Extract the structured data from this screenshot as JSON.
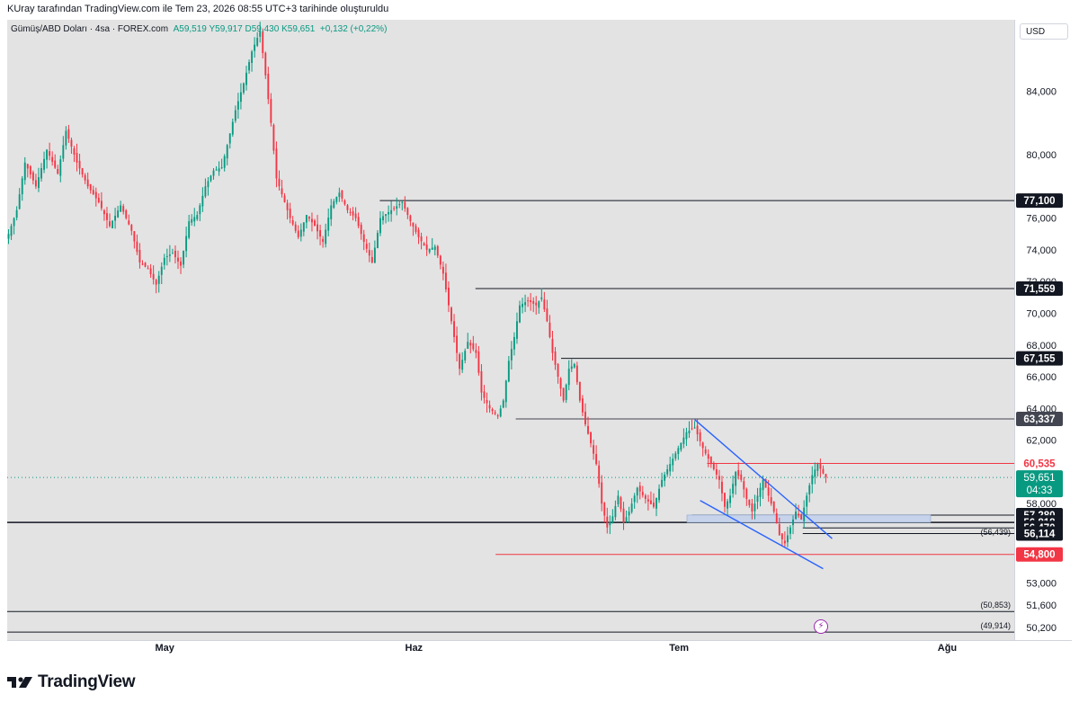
{
  "header": {
    "caption": "KUray tarafından TradingView.com ile Tem 23, 2026 08:55 UTC+3 tarihinde oluşturuldu"
  },
  "symbol": {
    "name": "Gümüş/ABD Doları · 4sa · FOREX.com",
    "ohlc": "A59,519  Y59,917  D59,430  K59,651",
    "change": "+0,132 (+0,22%)"
  },
  "currency": "USD",
  "logo_text": "TradingView",
  "colors": {
    "up": "#089981",
    "down": "#f23645",
    "trendline": "#2962ff",
    "level": "#131722",
    "red_level": "#f23645"
  },
  "chart_data": {
    "type": "candlestick",
    "title": "Gümüş/ABD Doları",
    "timeframe": "4sa",
    "x_tick_labels": [
      "May",
      "Haz",
      "Tem",
      "Ağu"
    ],
    "y_tick_labels": [
      "84,000",
      "80,000",
      "76,000",
      "74,000",
      "72,000",
      "70,000",
      "68,000",
      "66,000",
      "64,000",
      "62,000",
      "58,000",
      "53,000",
      "51,600",
      "50,200"
    ],
    "y_ticks": [
      84,
      80,
      76,
      74,
      72,
      70,
      68,
      66,
      64,
      62,
      58,
      53,
      51.6,
      50.2
    ],
    "ylim": [
      49.4,
      88.5
    ],
    "current_price": 59.651,
    "current_price_label": "59,651",
    "countdown": "04:33",
    "price_path": [
      [
        0,
        75.0
      ],
      [
        3,
        76.5
      ],
      [
        6,
        79.5
      ],
      [
        10,
        78.0
      ],
      [
        14,
        80.3
      ],
      [
        18,
        78.8
      ],
      [
        21,
        81.5
      ],
      [
        25,
        79.5
      ],
      [
        29,
        78.0
      ],
      [
        33,
        77.0
      ],
      [
        37,
        75.5
      ],
      [
        41,
        76.8
      ],
      [
        45,
        75.2
      ],
      [
        48,
        73.2
      ],
      [
        51,
        72.8
      ],
      [
        54,
        71.8
      ],
      [
        57,
        73.5
      ],
      [
        60,
        73.8
      ],
      [
        63,
        73.0
      ],
      [
        66,
        75.8
      ],
      [
        69,
        76.2
      ],
      [
        72,
        78.0
      ],
      [
        75,
        79.0
      ],
      [
        78,
        79.2
      ],
      [
        80,
        80.6
      ],
      [
        83,
        82.8
      ],
      [
        86,
        84.5
      ],
      [
        89,
        86.5
      ],
      [
        92,
        87.8
      ],
      [
        94,
        85.0
      ],
      [
        96,
        82.0
      ],
      [
        98,
        78.5
      ],
      [
        100,
        77.5
      ],
      [
        103,
        76.0
      ],
      [
        106,
        74.8
      ],
      [
        109,
        76.2
      ],
      [
        112,
        75.5
      ],
      [
        115,
        74.5
      ],
      [
        118,
        76.8
      ],
      [
        121,
        77.6
      ],
      [
        124,
        76.5
      ],
      [
        127,
        76.0
      ],
      [
        130,
        74.5
      ],
      [
        133,
        73.2
      ],
      [
        136,
        76.0
      ],
      [
        140,
        76.5
      ],
      [
        144,
        77.0
      ],
      [
        147,
        75.8
      ],
      [
        150,
        74.8
      ],
      [
        153,
        74.0
      ],
      [
        156,
        74.2
      ],
      [
        159,
        72.5
      ],
      [
        162,
        69.5
      ],
      [
        165,
        66.5
      ],
      [
        168,
        68.2
      ],
      [
        171,
        67.5
      ],
      [
        173,
        65.0
      ],
      [
        176,
        64.0
      ],
      [
        179,
        63.5
      ],
      [
        181,
        64.5
      ],
      [
        183,
        67.0
      ],
      [
        185,
        68.5
      ],
      [
        187,
        70.5
      ],
      [
        190,
        70.8
      ],
      [
        193,
        70.5
      ],
      [
        195,
        71.0
      ],
      [
        197,
        69.5
      ],
      [
        199,
        67.5
      ],
      [
        201,
        66.0
      ],
      [
        203,
        64.5
      ],
      [
        205,
        66.5
      ],
      [
        207,
        66.8
      ],
      [
        209,
        64.5
      ],
      [
        211,
        63.0
      ],
      [
        213,
        61.8
      ],
      [
        215,
        60.5
      ],
      [
        217,
        58.0
      ],
      [
        219,
        56.5
      ],
      [
        221,
        57.2
      ],
      [
        223,
        58.5
      ],
      [
        225,
        56.8
      ],
      [
        227,
        57.5
      ],
      [
        230,
        59.0
      ],
      [
        233,
        58.3
      ],
      [
        236,
        57.8
      ],
      [
        239,
        59.5
      ],
      [
        242,
        60.5
      ],
      [
        245,
        61.5
      ],
      [
        248,
        62.5
      ],
      [
        251,
        62.8
      ],
      [
        254,
        61.5
      ],
      [
        257,
        60.5
      ],
      [
        260,
        59.5
      ],
      [
        262,
        57.8
      ],
      [
        264,
        58.5
      ],
      [
        266,
        60.0
      ],
      [
        268,
        59.5
      ],
      [
        270,
        58.3
      ],
      [
        272,
        57.5
      ],
      [
        274,
        58.5
      ],
      [
        276,
        59.5
      ],
      [
        278,
        58.5
      ],
      [
        280,
        57.5
      ],
      [
        282,
        56.0
      ],
      [
        284,
        55.5
      ],
      [
        286,
        56.5
      ],
      [
        288,
        57.5
      ],
      [
        290,
        57.0
      ],
      [
        292,
        58.5
      ],
      [
        294,
        59.8
      ],
      [
        296,
        60.5
      ],
      [
        298,
        59.9
      ],
      [
        299,
        59.651
      ]
    ],
    "levels": [
      {
        "value": 77.1,
        "label": "77,100",
        "color": "#131722",
        "from": 0.37
      },
      {
        "value": 71.559,
        "label": "71,559",
        "color": "#131722",
        "from": 0.465
      },
      {
        "value": 67.155,
        "label": "67,155",
        "color": "#131722",
        "from": 0.55
      },
      {
        "value": 63.337,
        "label": "63,337",
        "color": "#434651",
        "from": 0.505
      },
      {
        "value": 60.535,
        "label": "60,535",
        "color": "#f23645",
        "from": 0.695
      },
      {
        "value": 57.28,
        "label": "57,280",
        "color": "#131722",
        "from": 0.68
      },
      {
        "value": 56.818,
        "label": "56,818",
        "color": "#131722",
        "from": 0.0
      },
      {
        "value": 56.47,
        "label": "56,470",
        "color": "#131722",
        "from": 0.79
      },
      {
        "value": 56.114,
        "label": "56,114",
        "color": "#131722",
        "from": 0.79
      },
      {
        "value": 54.8,
        "label": "54,800",
        "color": "#f23645",
        "from": 0.485
      }
    ],
    "bottom_lines": [
      {
        "value": 51.2,
        "label": "(50,853)"
      },
      {
        "value": 49.9,
        "label": "(49,914)"
      }
    ],
    "annotation_label": "(56,439)"
  }
}
